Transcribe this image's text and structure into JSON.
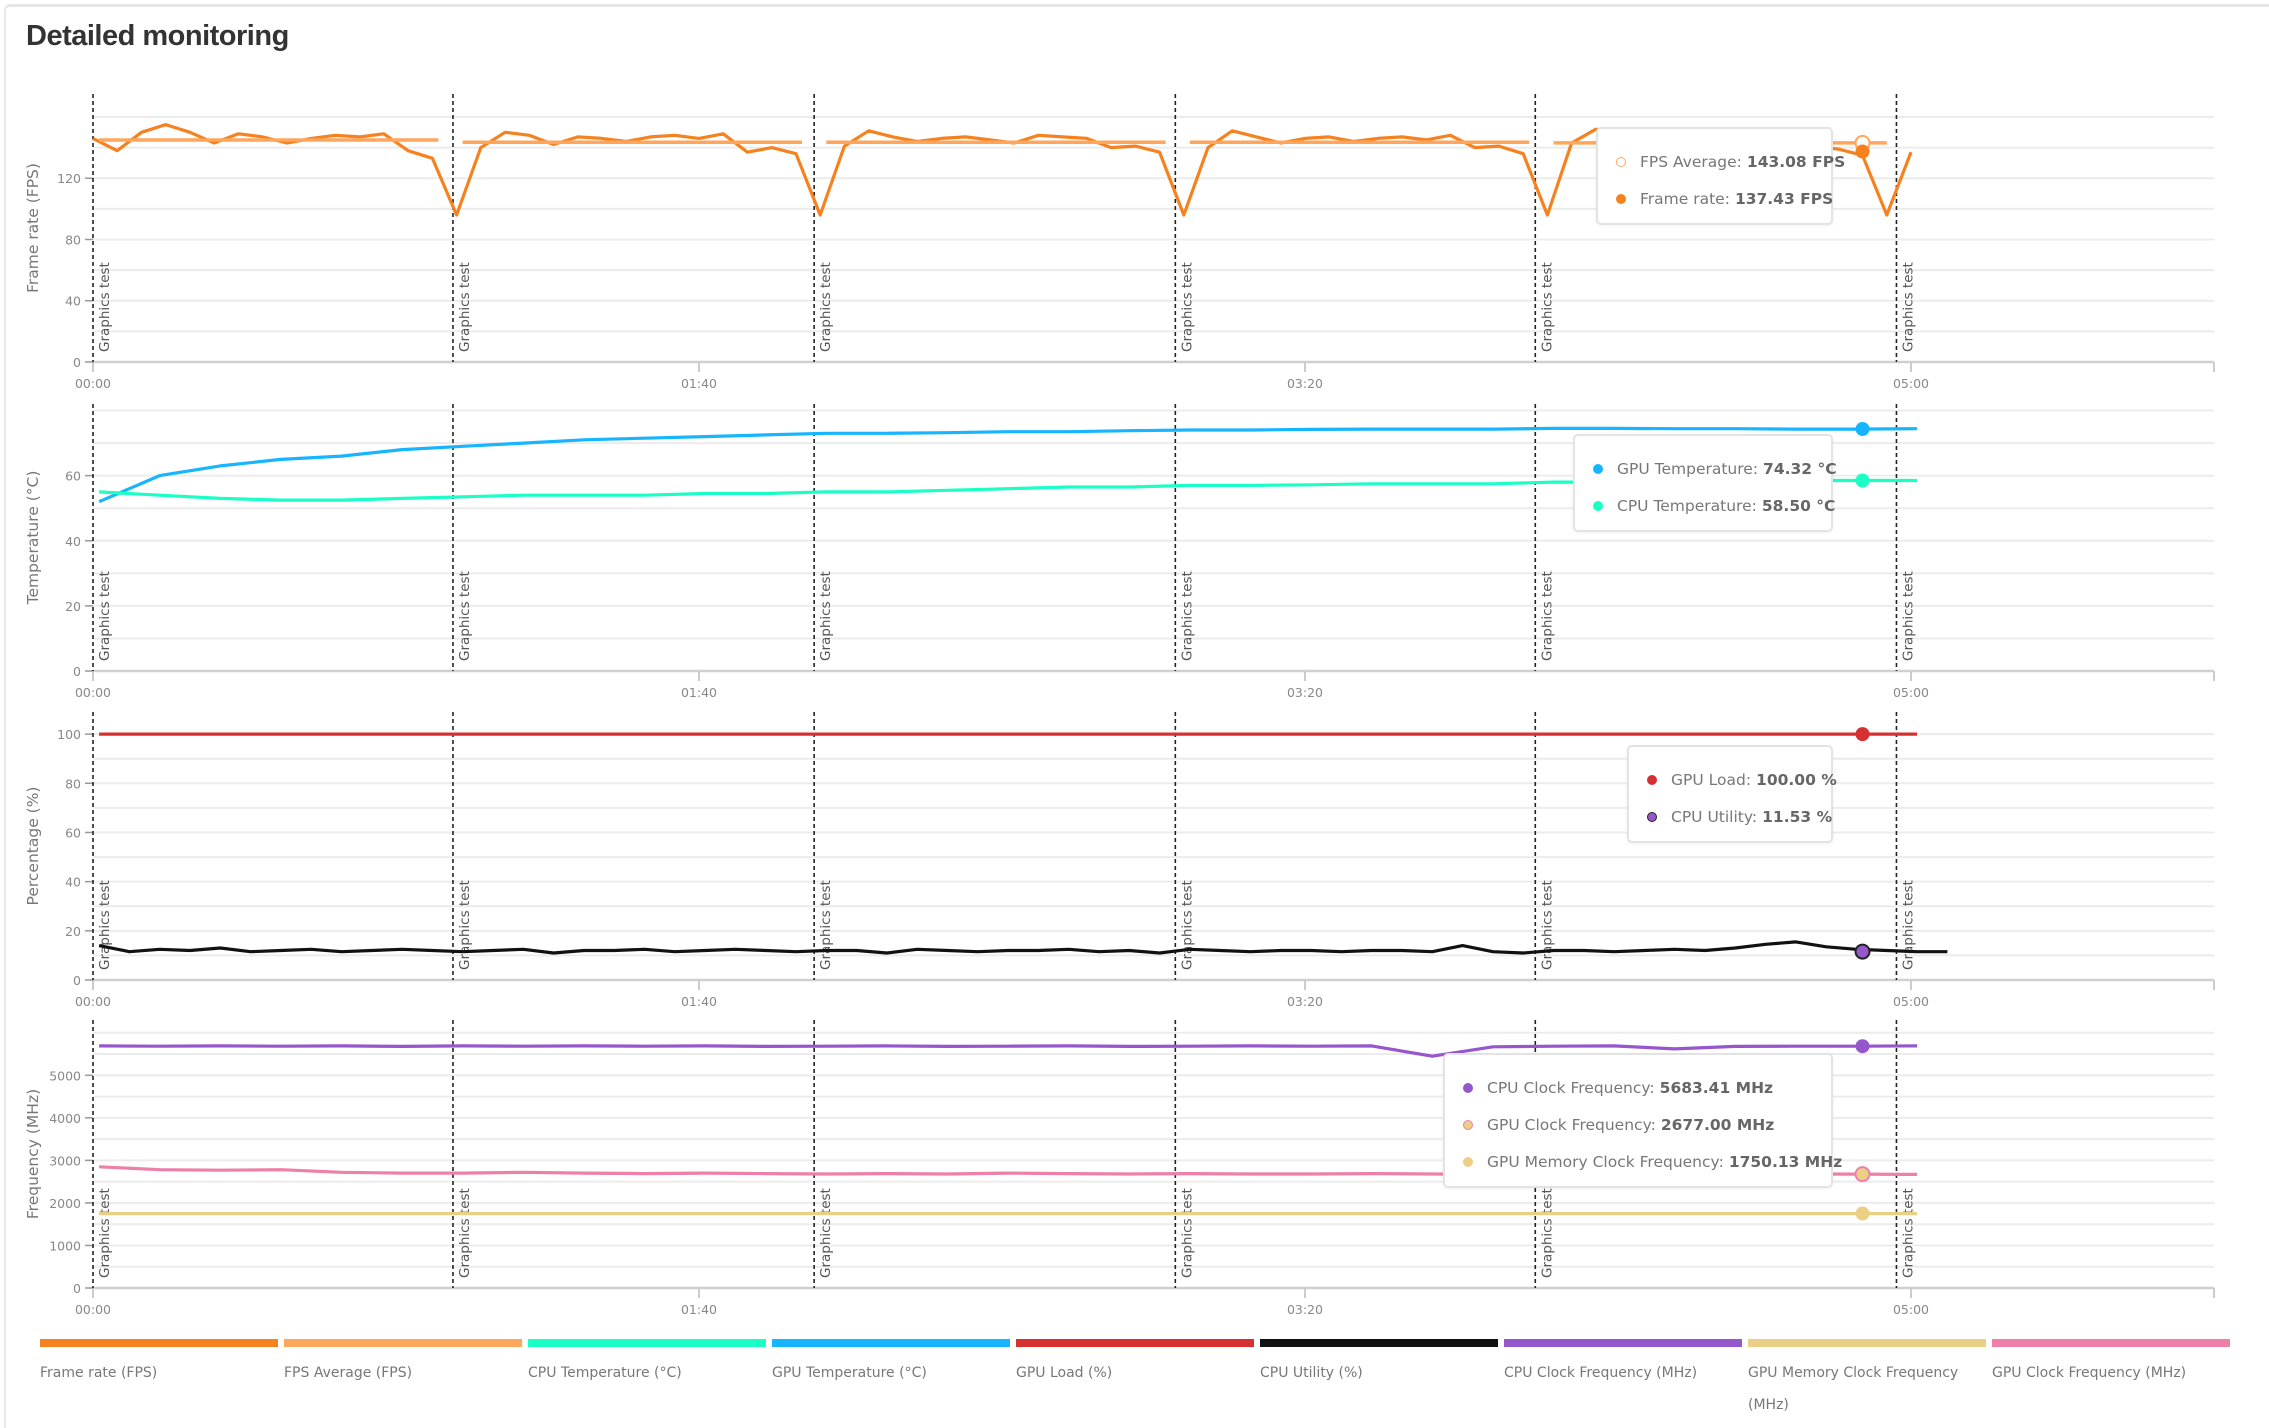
{
  "title": "Detailed monitoring",
  "chart_data": [
    {
      "type": "line",
      "ylabel": "Frame rate (FPS)",
      "ylim": [
        0,
        175
      ],
      "grid_step": 20,
      "yticks": [
        0,
        40,
        80,
        120
      ],
      "xlim": [
        0,
        350
      ],
      "xticks": [
        {
          "t": 0,
          "label": "00:00"
        },
        {
          "t": 100,
          "label": "01:40"
        },
        {
          "t": 200,
          "label": "03:20"
        },
        {
          "t": 300,
          "label": "05:00"
        }
      ],
      "markers": [
        {
          "t": 0,
          "label": "Graphics test"
        },
        {
          "t": 59.4,
          "label": "Graphics test"
        },
        {
          "t": 119,
          "label": "Graphics test"
        },
        {
          "t": 178.6,
          "label": "Graphics test"
        },
        {
          "t": 238,
          "label": "Graphics test"
        },
        {
          "t": 297.6,
          "label": "Graphics test"
        }
      ],
      "series": [
        {
          "name": "Frame rate",
          "color": "#f5821f",
          "x_start": 0,
          "x_step": 4,
          "values": [
            146,
            138,
            150,
            155,
            150,
            143,
            149,
            147,
            143,
            146,
            148,
            147,
            149,
            138,
            133,
            96,
            140,
            150,
            148,
            142,
            147,
            146,
            144,
            147,
            148,
            146,
            149,
            137,
            140,
            136,
            96,
            141,
            151,
            147,
            144,
            146,
            147,
            145,
            143,
            148,
            147,
            146,
            140,
            141,
            137,
            96,
            140,
            151,
            147,
            143,
            146,
            147,
            144,
            146,
            147,
            145,
            148,
            140,
            141,
            136,
            96,
            143,
            152,
            148,
            144,
            146,
            145,
            144,
            147,
            146,
            143,
            141,
            139,
            135,
            96,
            137
          ]
        },
        {
          "name": "FPS Average",
          "color": "#ffa65c",
          "segments": [
            [
              1,
              57,
              145
            ],
            [
              61,
              117,
              143.5
            ],
            [
              121,
              177,
              143.5
            ],
            [
              181,
              237,
              143.5
            ],
            [
              241,
              296,
              143.1
            ]
          ]
        }
      ],
      "hover": {
        "t": 292,
        "points": [
          {
            "color": "#ffa65c",
            "value": 143.08,
            "hollow": true
          },
          {
            "color": "#f5821f",
            "value": 137.43
          }
        ]
      },
      "tooltip": [
        {
          "label": "FPS Average:",
          "value": "143.08 FPS",
          "color": "#ffa65c",
          "hollow": true
        },
        {
          "label": "Frame rate:",
          "value": "137.43 FPS",
          "color": "#f5821f"
        }
      ]
    },
    {
      "type": "line",
      "ylabel": "Temperature (°C)",
      "ylim": [
        0,
        82
      ],
      "grid_step": 10,
      "yticks": [
        0,
        20,
        40,
        60
      ],
      "xlim": [
        0,
        350
      ],
      "xticks": [
        {
          "t": 0,
          "label": "00:00"
        },
        {
          "t": 100,
          "label": "01:40"
        },
        {
          "t": 200,
          "label": "03:20"
        },
        {
          "t": 300,
          "label": "05:00"
        }
      ],
      "markers": [
        {
          "t": 0,
          "label": "Graphics test"
        },
        {
          "t": 59.4,
          "label": "Graphics test"
        },
        {
          "t": 119,
          "label": "Graphics test"
        },
        {
          "t": 178.6,
          "label": "Graphics test"
        },
        {
          "t": 238,
          "label": "Graphics test"
        },
        {
          "t": 297.6,
          "label": "Graphics test"
        }
      ],
      "series": [
        {
          "name": "GPU Temperature",
          "color": "#17b5ff",
          "x_start": 1,
          "x_step": 10,
          "values": [
            52,
            60,
            63,
            65,
            66,
            68,
            69,
            70,
            71,
            71.5,
            72,
            72.5,
            73,
            73,
            73.2,
            73.5,
            73.5,
            73.8,
            74,
            74,
            74.2,
            74.3,
            74.3,
            74.3,
            74.5,
            74.5,
            74.4,
            74.4,
            74.3,
            74.3,
            74.4
          ]
        },
        {
          "name": "CPU Temperature",
          "color": "#1affc6",
          "x_start": 1,
          "x_step": 10,
          "values": [
            55,
            54,
            53,
            52.5,
            52.5,
            53,
            53.5,
            54,
            54,
            54,
            54.5,
            54.5,
            55,
            55,
            55.5,
            56,
            56.5,
            56.5,
            57,
            57,
            57.2,
            57.5,
            57.5,
            57.5,
            58,
            58,
            58,
            58.5,
            58.5,
            58.5,
            58.5
          ]
        }
      ],
      "hover": {
        "t": 292,
        "points": [
          {
            "color": "#17b5ff",
            "value": 74.32
          },
          {
            "color": "#1affc6",
            "value": 58.5
          }
        ]
      },
      "tooltip": [
        {
          "label": "GPU Temperature:",
          "value": "74.32 °C",
          "color": "#17b5ff"
        },
        {
          "label": "CPU Temperature:",
          "value": "58.50 °C",
          "color": "#1affc6"
        }
      ]
    },
    {
      "type": "line",
      "ylabel": "Percentage (%)",
      "ylim": [
        0,
        109
      ],
      "grid_step": 10,
      "yticks": [
        0,
        20,
        40,
        60,
        80,
        100
      ],
      "xlim": [
        0,
        350
      ],
      "xticks": [
        {
          "t": 0,
          "label": "00:00"
        },
        {
          "t": 100,
          "label": "01:40"
        },
        {
          "t": 200,
          "label": "03:20"
        },
        {
          "t": 300,
          "label": "05:00"
        }
      ],
      "markers": [
        {
          "t": 0,
          "label": "Graphics test"
        },
        {
          "t": 59.4,
          "label": "Graphics test"
        },
        {
          "t": 119,
          "label": "Graphics test"
        },
        {
          "t": 178.6,
          "label": "Graphics test"
        },
        {
          "t": 238,
          "label": "Graphics test"
        },
        {
          "t": 297.6,
          "label": "Graphics test"
        }
      ],
      "series": [
        {
          "name": "GPU Load",
          "color": "#d63031",
          "x_start": 1,
          "x_step": 10,
          "values": [
            100,
            100,
            100,
            100,
            100,
            100,
            100,
            100,
            100,
            100,
            100,
            100,
            100,
            100,
            100,
            100,
            100,
            100,
            100,
            100,
            100,
            100,
            100,
            100,
            100,
            100,
            100,
            100,
            100,
            100,
            100
          ]
        },
        {
          "name": "CPU Utility",
          "color": "#111111",
          "x_start": 1,
          "x_step": 5,
          "values": [
            14,
            11.5,
            12.5,
            12,
            13,
            11.5,
            12,
            12.5,
            11.5,
            12,
            12.5,
            12,
            11.5,
            12,
            12.5,
            11,
            12,
            12,
            12.5,
            11.5,
            12,
            12.5,
            12,
            11.5,
            12,
            12,
            11,
            12.5,
            12,
            11.5,
            12,
            12,
            12.5,
            11.5,
            12,
            11,
            12.5,
            12,
            11.5,
            12,
            12,
            11.5,
            12,
            12,
            11.5,
            14,
            11.5,
            11,
            12,
            12,
            11.5,
            12,
            12.5,
            12,
            13,
            14.5,
            15.5,
            13.5,
            12.5,
            12,
            11.5,
            11.5
          ]
        }
      ],
      "hover": {
        "t": 292,
        "points": [
          {
            "color": "#d63031",
            "value": 100
          },
          {
            "color": "#9656cc",
            "value": 11.53,
            "outlined": true
          }
        ]
      },
      "tooltip": [
        {
          "label": "GPU Load:",
          "value": "100.00 %",
          "color": "#d63031"
        },
        {
          "label": "CPU Utility:",
          "value": "11.53 %",
          "color": "#9656cc",
          "outlined": true
        }
      ]
    },
    {
      "type": "line",
      "ylabel": "Frequency (MHz)",
      "ylim": [
        0,
        6300
      ],
      "grid_step": 500,
      "yticks": [
        0,
        1000,
        2000,
        3000,
        4000,
        5000
      ],
      "xlim": [
        0,
        350
      ],
      "xticks": [
        {
          "t": 0,
          "label": "00:00"
        },
        {
          "t": 100,
          "label": "01:40"
        },
        {
          "t": 200,
          "label": "03:20"
        },
        {
          "t": 300,
          "label": "05:00"
        }
      ],
      "markers": [
        {
          "t": 0,
          "label": "Graphics test"
        },
        {
          "t": 59.4,
          "label": "Graphics test"
        },
        {
          "t": 119,
          "label": "Graphics test"
        },
        {
          "t": 178.6,
          "label": "Graphics test"
        },
        {
          "t": 238,
          "label": "Graphics test"
        },
        {
          "t": 297.6,
          "label": "Graphics test"
        }
      ],
      "series": [
        {
          "name": "CPU Clock Frequency",
          "color": "#9656cc",
          "x_start": 1,
          "x_step": 10,
          "values": [
            5690,
            5685,
            5690,
            5685,
            5690,
            5680,
            5690,
            5685,
            5690,
            5685,
            5690,
            5680,
            5685,
            5690,
            5680,
            5685,
            5690,
            5680,
            5685,
            5690,
            5685,
            5690,
            5450,
            5670,
            5685,
            5690,
            5620,
            5680,
            5685,
            5683,
            5690
          ]
        },
        {
          "name": "GPU Clock Frequency",
          "color": "#ed7fa8",
          "x_start": 1,
          "x_step": 10,
          "values": [
            2850,
            2780,
            2770,
            2780,
            2720,
            2700,
            2700,
            2720,
            2700,
            2690,
            2700,
            2690,
            2680,
            2690,
            2680,
            2700,
            2690,
            2680,
            2690,
            2680,
            2680,
            2690,
            2680,
            2670,
            2680,
            2680,
            2690,
            2680,
            2680,
            2677,
            2670
          ]
        },
        {
          "name": "GPU Memory Clock Frequency",
          "color": "#ebcf85",
          "x_start": 1,
          "x_step": 10,
          "values": [
            1750,
            1750,
            1750,
            1750,
            1750,
            1750,
            1750,
            1750,
            1750,
            1750,
            1750,
            1750,
            1750,
            1750,
            1750,
            1750,
            1750,
            1750,
            1750,
            1750,
            1750,
            1750,
            1750,
            1750,
            1750,
            1750,
            1750,
            1750,
            1750,
            1750,
            1750
          ]
        }
      ],
      "hover": {
        "t": 292,
        "points": [
          {
            "color": "#9656cc",
            "value": 5683.41
          },
          {
            "color": "#ebcf85",
            "value": 2677,
            "ring": "#ed7fa8"
          },
          {
            "color": "#ebcf85",
            "value": 1750.13
          }
        ]
      },
      "tooltip": [
        {
          "label": "CPU Clock Frequency:",
          "value": "5683.41 MHz",
          "color": "#9656cc"
        },
        {
          "label": "GPU Clock Frequency:",
          "value": "2677.00 MHz",
          "color": "#ebcf85",
          "ring": "#ed7fa8"
        },
        {
          "label": "GPU Memory Clock Frequency:",
          "value": "1750.13 MHz",
          "color": "#ebcf85"
        }
      ]
    }
  ],
  "legend": [
    {
      "label": "Frame rate (FPS)",
      "color": "#f5821f"
    },
    {
      "label": "FPS Average (FPS)",
      "color": "#ffa65c"
    },
    {
      "label": "CPU Temperature (°C)",
      "color": "#1affc6"
    },
    {
      "label": "GPU Temperature (°C)",
      "color": "#17b5ff"
    },
    {
      "label": "GPU Load (%)",
      "color": "#d63031"
    },
    {
      "label": "CPU Utility (%)",
      "color": "#111111"
    },
    {
      "label": "CPU Clock Frequency (MHz)",
      "color": "#9656cc"
    },
    {
      "label": "GPU Memory Clock Frequency (MHz)",
      "color": "#ebcf85"
    },
    {
      "label": "GPU Clock Frequency (MHz)",
      "color": "#ed7fa8"
    }
  ]
}
